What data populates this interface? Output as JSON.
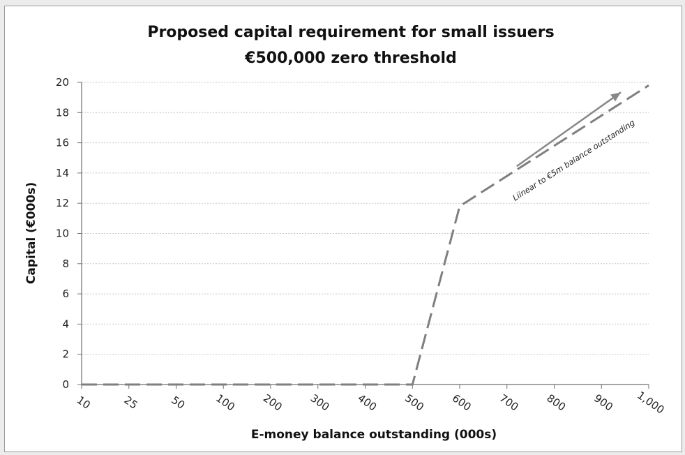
{
  "chart_data": {
    "type": "line",
    "title": "Proposed capital requirement for small issuers",
    "subtitle": "€500,000 zero threshold",
    "xlabel": "E-money balance outstanding (000s)",
    "ylabel": "Capital (€000s)",
    "categories": [
      "10",
      "25",
      "50",
      "100",
      "200",
      "300",
      "400",
      "500",
      "600",
      "700",
      "800",
      "900",
      "1,000"
    ],
    "y_ticks": [
      "0",
      "2",
      "4",
      "6",
      "8",
      "10",
      "12",
      "14",
      "16",
      "18",
      "20"
    ],
    "ylim": [
      0,
      20
    ],
    "grid": "horizontal dotted",
    "series": [
      {
        "values": [
          0,
          0,
          0,
          0,
          0,
          0,
          0,
          0,
          11.8,
          13.8,
          15.8,
          17.8,
          19.8
        ],
        "color": "#7f7f7f",
        "style": "dashed"
      }
    ],
    "annotation": {
      "text": "Liinear to €5m balance outstanding",
      "arrow_color": "#888888"
    }
  }
}
